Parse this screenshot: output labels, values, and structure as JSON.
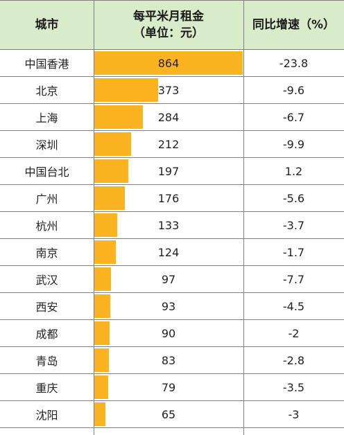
{
  "header": {
    "city": "城市",
    "rent_line1": "每平米月租金",
    "rent_line2": "（单位：元）",
    "growth": "同比增速（%）"
  },
  "colors": {
    "header_bg": "#d9ecc9",
    "bar": "#fbb321",
    "grid": "#7f7f7f"
  },
  "chart_data": {
    "type": "table",
    "columns": [
      "城市",
      "每平米月租金（单位：元）",
      "同比增速（%）"
    ],
    "rows": [
      {
        "city": "中国香港",
        "rent": 864,
        "growth": "-23.8"
      },
      {
        "city": "北京",
        "rent": 373,
        "growth": "-9.6"
      },
      {
        "city": "上海",
        "rent": 284,
        "growth": "-6.7"
      },
      {
        "city": "深圳",
        "rent": 212,
        "growth": "-9.9"
      },
      {
        "city": "中国台北",
        "rent": 197,
        "growth": "1.2"
      },
      {
        "city": "广州",
        "rent": 176,
        "growth": "-5.6"
      },
      {
        "city": "杭州",
        "rent": 133,
        "growth": "-3.7"
      },
      {
        "city": "南京",
        "rent": 124,
        "growth": "-1.7"
      },
      {
        "city": "武汉",
        "rent": 97,
        "growth": "-7.7"
      },
      {
        "city": "西安",
        "rent": 93,
        "growth": "-4.5"
      },
      {
        "city": "成都",
        "rent": 90,
        "growth": "-2"
      },
      {
        "city": "青岛",
        "rent": 83,
        "growth": "-2.8"
      },
      {
        "city": "重庆",
        "rent": 79,
        "growth": "-3.5"
      },
      {
        "city": "沈阳",
        "rent": 65,
        "growth": "-3"
      }
    ],
    "bar_max": 864
  }
}
